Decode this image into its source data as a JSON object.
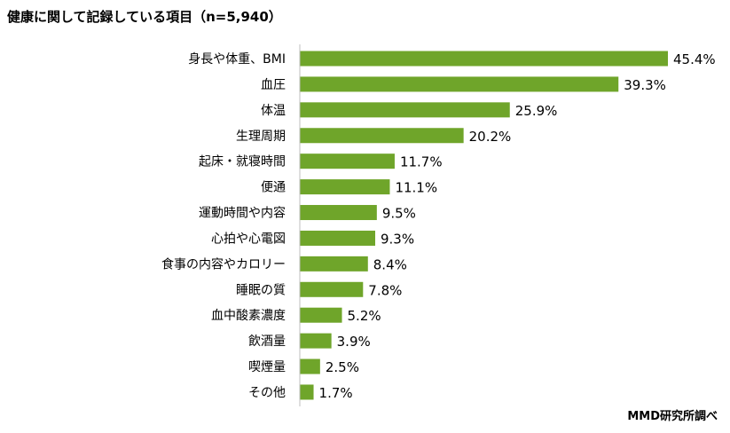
{
  "chart_data": {
    "type": "bar",
    "orientation": "horizontal",
    "title": "健康に関して記録している項目（n=5,940）",
    "source": "MMD研究所調べ",
    "categories": [
      "身長や体重、BMI",
      "血圧",
      "体温",
      "生理周期",
      "起床・就寝時間",
      "便通",
      "運動時間や内容",
      "心拍や心電図",
      "食事の内容やカロリー",
      "睡眠の質",
      "血中酸素濃度",
      "飲酒量",
      "喫煙量",
      "その他"
    ],
    "values": [
      45.4,
      39.3,
      25.9,
      20.2,
      11.7,
      11.1,
      9.5,
      9.3,
      8.4,
      7.8,
      5.2,
      3.9,
      2.5,
      1.7
    ],
    "value_labels": [
      "45.4%",
      "39.3%",
      "25.9%",
      "20.2%",
      "11.7%",
      "11.1%",
      "9.5%",
      "9.3%",
      "8.4%",
      "7.8%",
      "5.2%",
      "3.9%",
      "2.5%",
      "1.7%"
    ],
    "unit": "%",
    "xlim": [
      0,
      50
    ],
    "grid": false,
    "bar_color": "#6fa52a",
    "axis_color": "#bfbfbf"
  }
}
